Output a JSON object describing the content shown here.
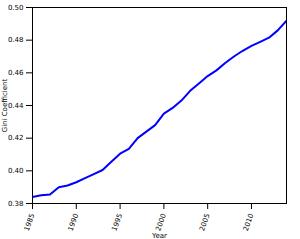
{
  "chart_data": {
    "type": "line",
    "x_label": "Year",
    "y_label": "Gini Coefficient",
    "x": [
      1985,
      1986,
      1987,
      1988,
      1989,
      1990,
      1991,
      1992,
      1993,
      1994,
      1995,
      1996,
      1997,
      1998,
      1999,
      2000,
      2001,
      2002,
      2003,
      2004,
      2005,
      2006,
      2007,
      2008,
      2009,
      2010,
      2011,
      2012,
      2013,
      2014
    ],
    "values": [
      0.384,
      0.385,
      0.3855,
      0.39,
      0.391,
      0.393,
      0.3955,
      0.398,
      0.4005,
      0.4055,
      0.4105,
      0.4135,
      0.42,
      0.424,
      0.428,
      0.435,
      0.4385,
      0.443,
      0.449,
      0.4535,
      0.458,
      0.4615,
      0.466,
      0.47,
      0.4735,
      0.4765,
      0.479,
      0.4815,
      0.486,
      0.492
    ],
    "color": "#0000ff",
    "xlim": [
      1985,
      2014
    ],
    "xticks": [
      1985,
      1990,
      1995,
      2000,
      2005,
      2010
    ],
    "ylim": [
      0.38,
      0.5
    ],
    "yticks": [
      0.38,
      {
        "value": 0.4,
        "label": "0.40"
      },
      0.42,
      0.44,
      0.46,
      0.48,
      {
        "value": 0.5,
        "label": "0.50"
      }
    ],
    "grid": false
  }
}
